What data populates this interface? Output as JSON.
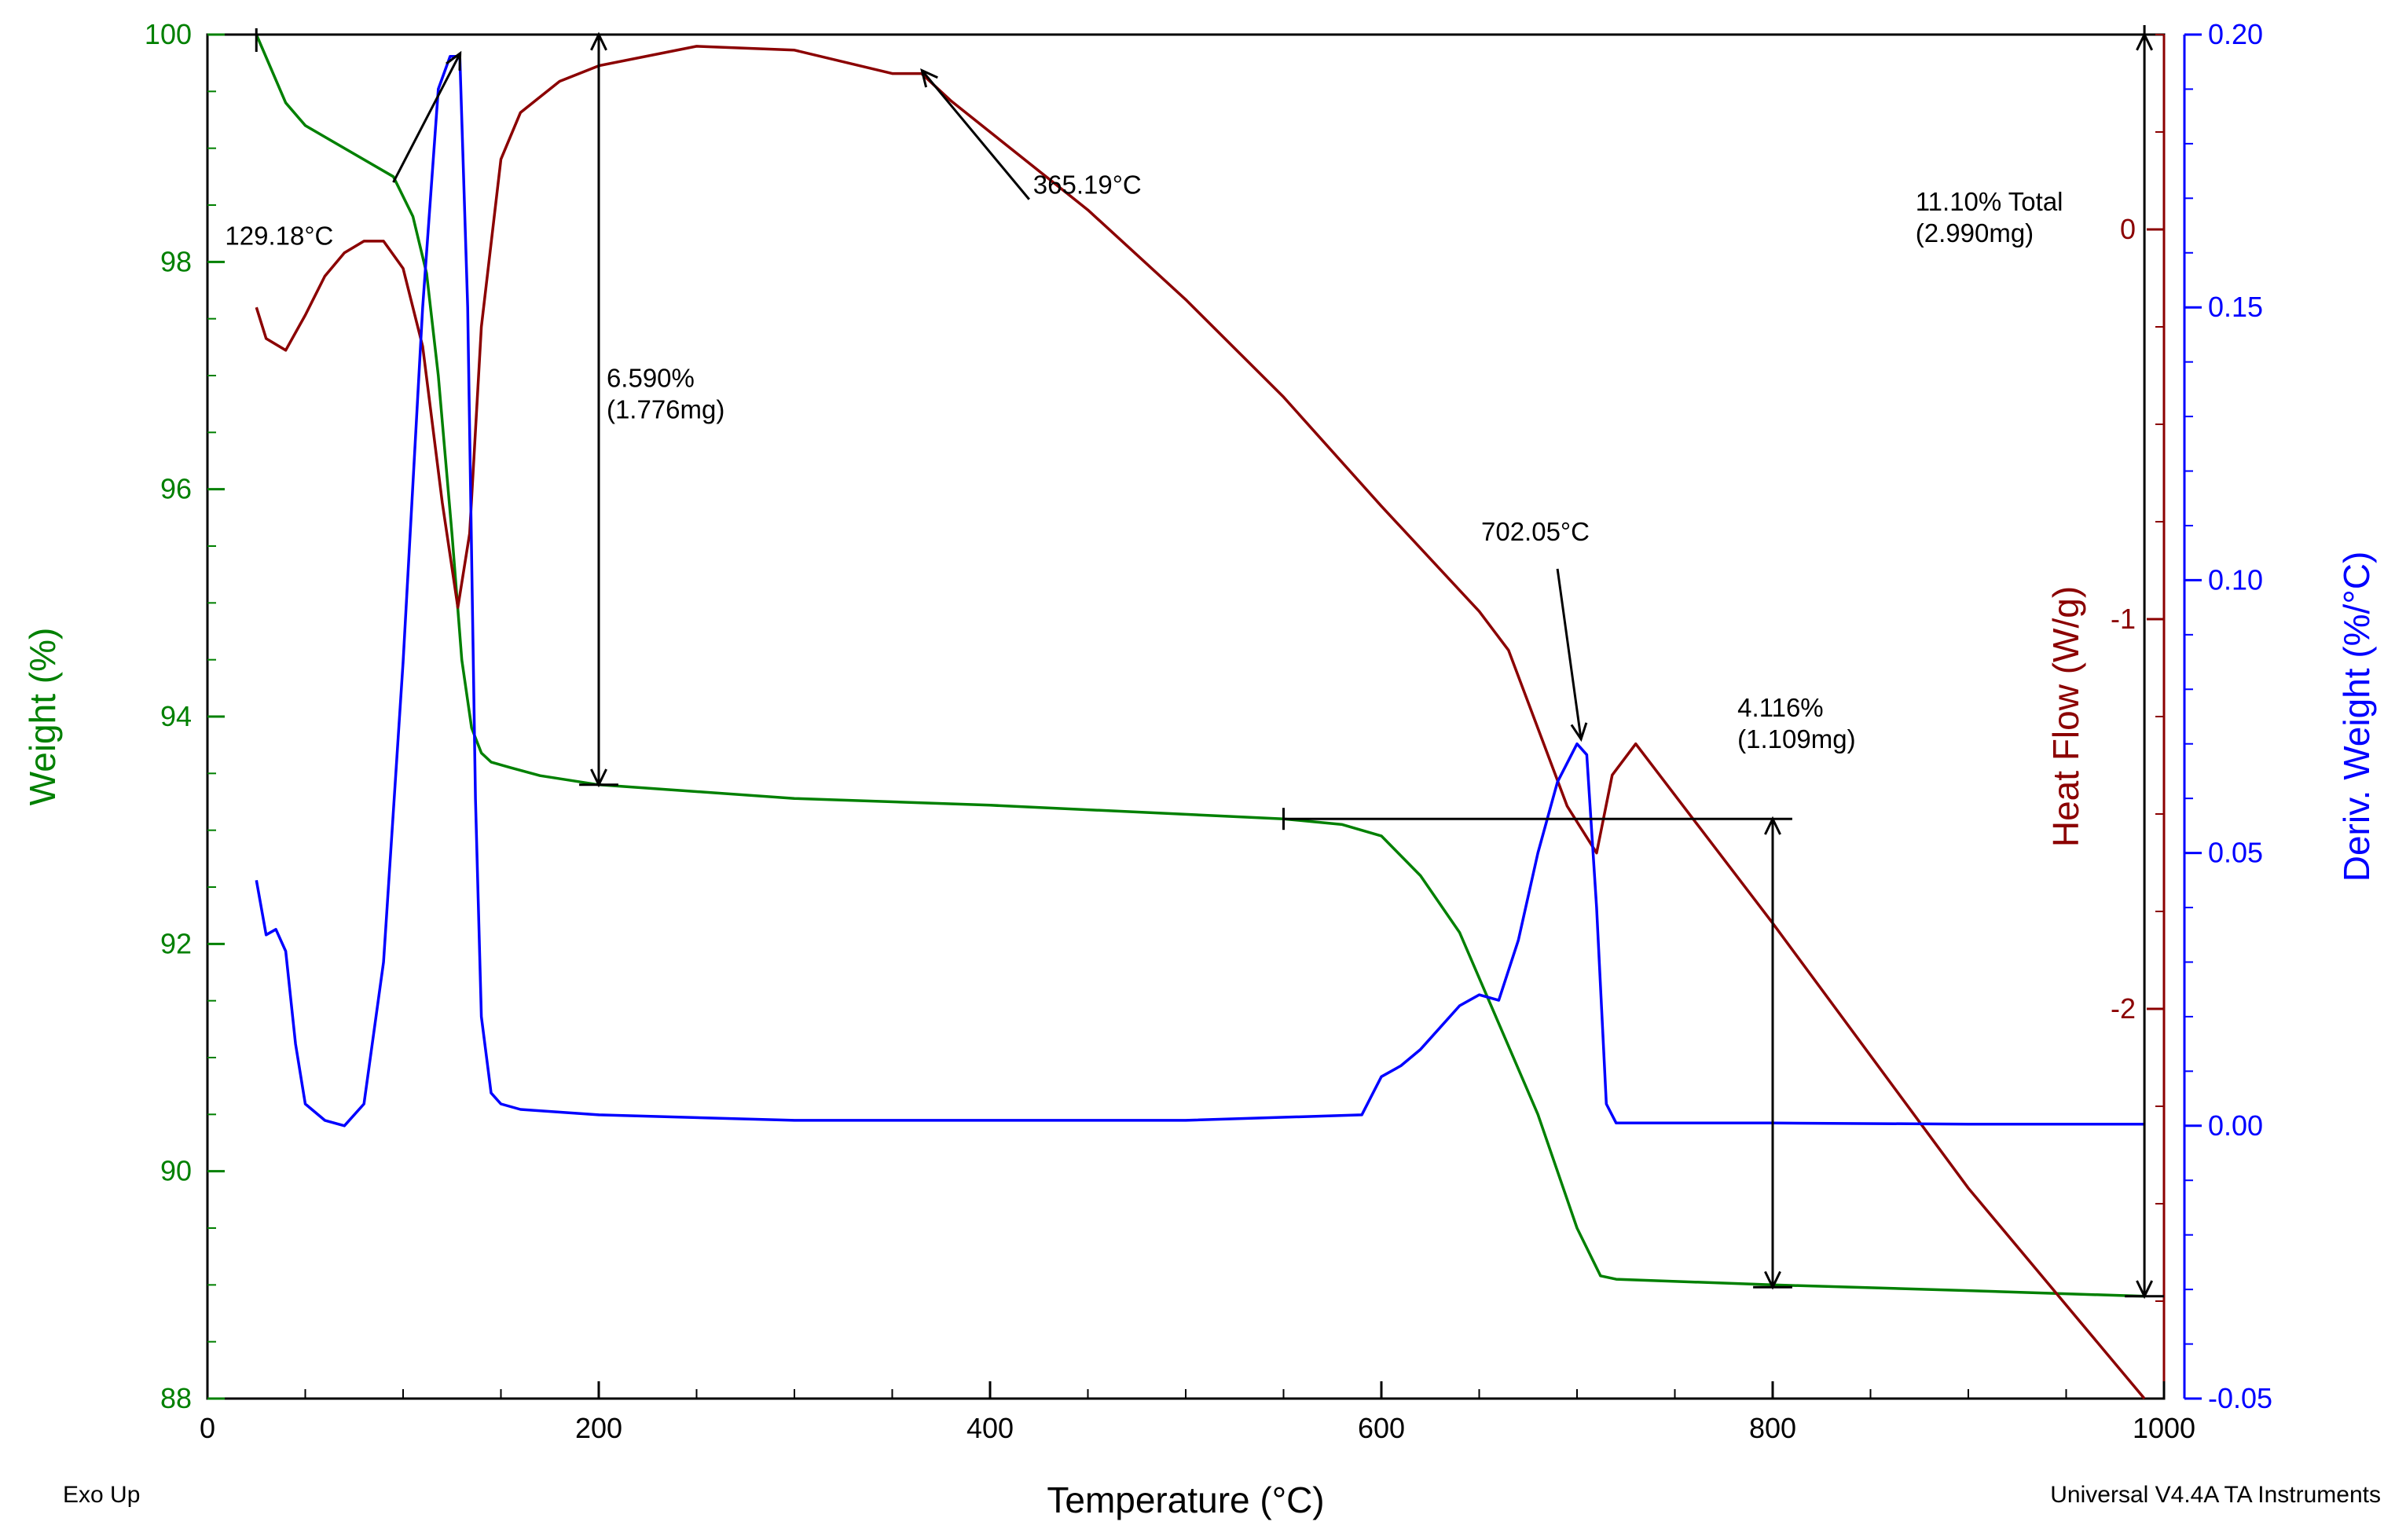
{
  "chart_data": {
    "type": "line",
    "title": "",
    "footer_left": "Exo Up",
    "footer_right": "Universal V4.4A TA Instruments",
    "xlabel": "Temperature (°C)",
    "xlim": [
      0,
      1000
    ],
    "xticks": [
      0,
      200,
      400,
      600,
      800,
      1000
    ],
    "xtick_labels": [
      "0",
      "200",
      "400",
      "600",
      "800",
      "1000"
    ],
    "axes": {
      "weight": {
        "label": "Weight (%)",
        "range": [
          88,
          100
        ],
        "ticks": [
          88,
          90,
          92,
          94,
          96,
          98,
          100
        ],
        "tick_labels": [
          "88",
          "90",
          "92",
          "94",
          "96",
          "98",
          "100"
        ],
        "color": "#008000"
      },
      "heat_flow": {
        "label": "Heat Flow (W/g)",
        "range": [
          -3,
          0.5
        ],
        "ticks": [
          -2,
          -1,
          0
        ],
        "tick_labels": [
          "-2",
          "-1",
          "0"
        ],
        "color": "#8B0000"
      },
      "deriv": {
        "label": "Deriv. Weight (%/°C)",
        "range": [
          -0.05,
          0.2
        ],
        "ticks": [
          -0.05,
          0.0,
          0.05,
          0.1,
          0.15,
          0.2
        ],
        "tick_labels": [
          "-0.05",
          "0.00",
          "0.05",
          "0.10",
          "0.15",
          "0.20"
        ],
        "color": "#0000FF"
      }
    },
    "series": [
      {
        "name": "Weight (%)",
        "axis": "weight",
        "color": "#008000",
        "x": [
          25,
          40,
          50,
          60,
          80,
          95,
          105,
          112,
          118,
          125,
          130,
          135,
          140,
          145,
          155,
          170,
          200,
          300,
          400,
          500,
          550,
          580,
          600,
          620,
          640,
          660,
          680,
          700,
          712,
          720,
          800,
          900,
          990
        ],
        "y": [
          100,
          99.4,
          99.2,
          99.1,
          98.9,
          98.75,
          98.4,
          97.9,
          97.0,
          95.6,
          94.5,
          93.9,
          93.68,
          93.6,
          93.55,
          93.48,
          93.4,
          93.28,
          93.22,
          93.14,
          93.1,
          93.05,
          92.95,
          92.6,
          92.1,
          91.3,
          90.5,
          89.5,
          89.08,
          89.05,
          89.0,
          88.95,
          88.9
        ]
      },
      {
        "name": "Heat Flow (W/g)",
        "axis": "heat_flow",
        "color": "#8B0000",
        "x": [
          25,
          30,
          40,
          50,
          60,
          70,
          80,
          90,
          100,
          110,
          120,
          128,
          134,
          140,
          150,
          160,
          180,
          200,
          250,
          300,
          350,
          365,
          380,
          450,
          500,
          550,
          600,
          650,
          665,
          680,
          695,
          710,
          718,
          730,
          800,
          900,
          990
        ],
        "y": [
          -0.2,
          -0.28,
          -0.31,
          -0.22,
          -0.12,
          -0.06,
          -0.03,
          -0.03,
          -0.1,
          -0.3,
          -0.7,
          -0.97,
          -0.78,
          -0.25,
          0.18,
          0.3,
          0.38,
          0.42,
          0.47,
          0.46,
          0.4,
          0.4,
          0.33,
          0.05,
          -0.18,
          -0.43,
          -0.71,
          -0.98,
          -1.08,
          -1.28,
          -1.48,
          -1.6,
          -1.4,
          -1.32,
          -1.78,
          -2.46,
          -3.0
        ]
      },
      {
        "name": "Deriv. Weight (%/°C)",
        "axis": "deriv",
        "color": "#0000FF",
        "x": [
          25,
          30,
          35,
          40,
          45,
          50,
          60,
          70,
          80,
          90,
          100,
          110,
          118,
          124,
          129,
          133,
          137,
          140,
          145,
          150,
          160,
          200,
          300,
          400,
          500,
          590,
          600,
          610,
          620,
          630,
          640,
          650,
          660,
          670,
          680,
          690,
          700,
          705,
          710,
          715,
          720,
          760,
          800,
          900,
          990
        ],
        "y": [
          0.045,
          0.035,
          0.036,
          0.032,
          0.015,
          0.004,
          0.001,
          0.0,
          0.004,
          0.03,
          0.085,
          0.15,
          0.19,
          0.196,
          0.196,
          0.15,
          0.06,
          0.02,
          0.006,
          0.004,
          0.003,
          0.002,
          0.001,
          0.001,
          0.001,
          0.002,
          0.009,
          0.011,
          0.014,
          0.018,
          0.022,
          0.024,
          0.023,
          0.034,
          0.05,
          0.063,
          0.07,
          0.068,
          0.04,
          0.004,
          0.0005,
          0.0005,
          0.0005,
          0.0003,
          0.0003
        ]
      }
    ],
    "annotations": [
      {
        "text": "129.18°C",
        "x": 129.18,
        "axis": "deriv",
        "y": 0.196
      },
      {
        "text": "365.19°C",
        "x": 365.19,
        "axis": "heat_flow",
        "y": 0.4
      },
      {
        "text": "702.05°C",
        "x": 702.05,
        "axis": "deriv",
        "y": 0.07
      },
      {
        "lines": [
          "6.590%",
          "(1.776mg)"
        ],
        "x": 200
      },
      {
        "lines": [
          "4.116%",
          "(1.109mg)"
        ],
        "x": 800
      },
      {
        "lines": [
          "11.10% Total",
          "(2.990mg)"
        ],
        "x": 990
      }
    ]
  }
}
